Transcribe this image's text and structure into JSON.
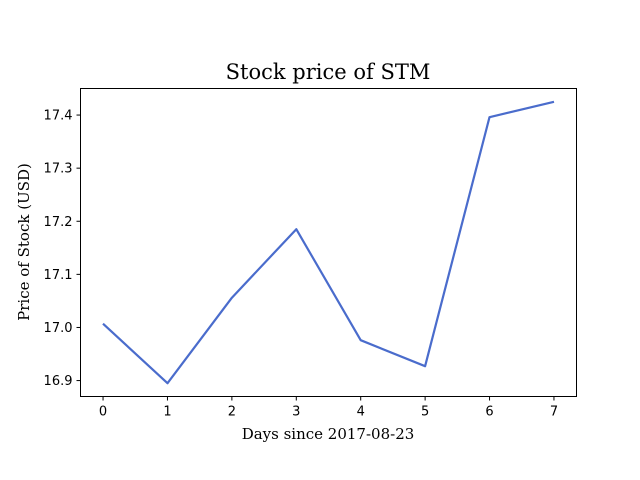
{
  "chart_data": {
    "type": "line",
    "title": "Stock price of STM",
    "xlabel": "Days since 2017-08-23",
    "ylabel": "Price of Stock (USD)",
    "x": [
      0,
      1,
      2,
      3,
      4,
      5,
      6,
      7
    ],
    "series": [
      {
        "values": [
          17.007,
          16.895,
          17.056,
          17.185,
          16.976,
          16.927,
          17.396,
          17.425
        ],
        "color": "#4a6ccc"
      }
    ],
    "xlim": [
      -0.35,
      7.35
    ],
    "ylim": [
      16.87,
      17.45
    ],
    "xticks": [
      0,
      1,
      2,
      3,
      4,
      5,
      6,
      7
    ],
    "yticks": [
      "16.9",
      "17.0",
      "17.1",
      "17.2",
      "17.3",
      "17.4"
    ],
    "grid": false,
    "legend": "none"
  }
}
